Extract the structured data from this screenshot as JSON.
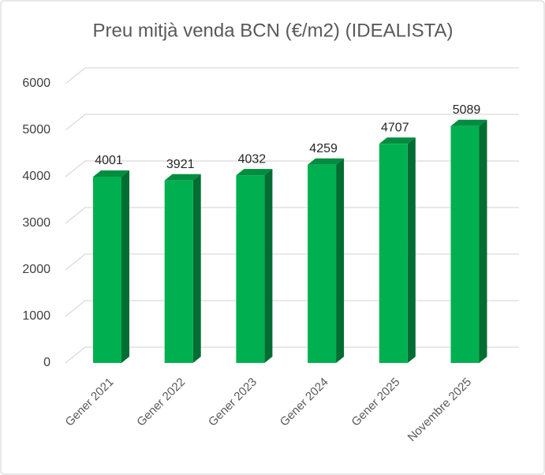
{
  "chart_data": {
    "type": "bar",
    "title": "Preu mitjà venda BCN  (€/m2) (IDEALISTA)",
    "categories": [
      "Gener 2021",
      "Gener 2022",
      "Gener 2023",
      "Gener 2024",
      "Gener 2025",
      "Novembre 2025"
    ],
    "values": [
      4001,
      3921,
      4032,
      4259,
      4707,
      5089
    ],
    "color": "#00b050",
    "ylim": [
      0,
      6000
    ],
    "yticks": [
      0,
      1000,
      2000,
      3000,
      4000,
      5000,
      6000
    ],
    "grid": true
  }
}
